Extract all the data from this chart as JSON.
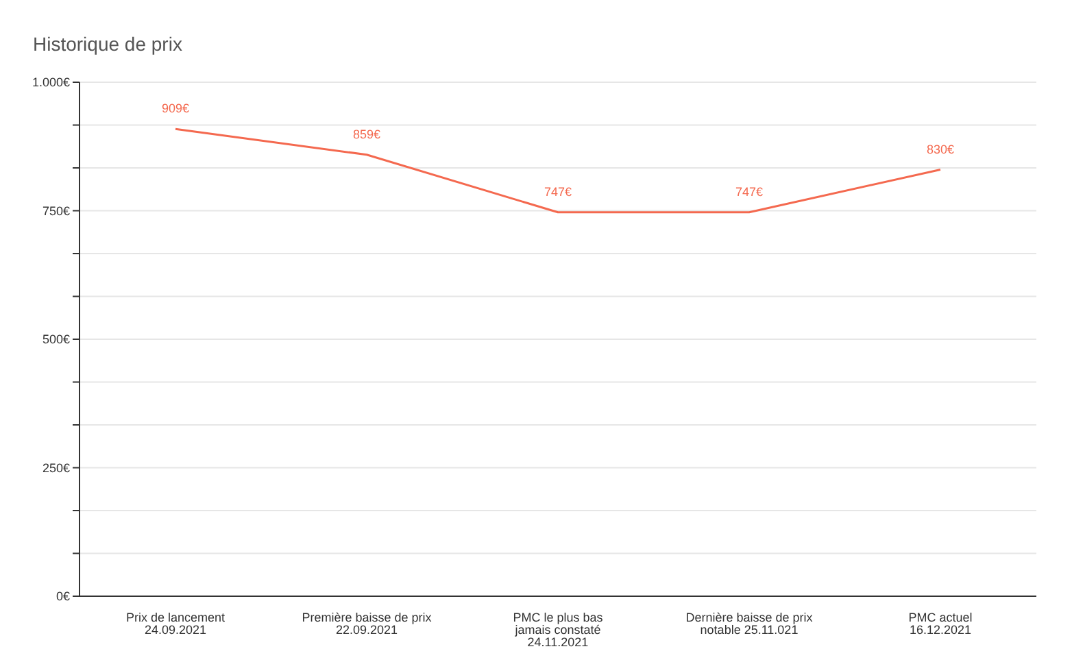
{
  "chart_data": {
    "type": "line",
    "title": "Historique de prix",
    "categories": [
      "Prix de lancement 24.09.2021",
      "Première baisse de prix 22.09.2021",
      "PMC le plus bas jamais constaté 24.11.2021",
      "Dernière baisse de prix notable 25.11.021",
      "PMC actuel 16.12.2021"
    ],
    "series": [
      {
        "color": "#f4694f",
        "values": [
          909,
          859,
          747,
          747,
          830
        ],
        "value_labels": [
          "909€",
          "859€",
          "747€",
          "747€",
          "830€"
        ]
      }
    ],
    "ylim": [
      0,
      1000
    ],
    "yticks": [
      {
        "value": 0,
        "label": "0€"
      },
      {
        "value": 83.33,
        "label": null
      },
      {
        "value": 166.67,
        "label": null
      },
      {
        "value": 250,
        "label": "250€"
      },
      {
        "value": 333.33,
        "label": null
      },
      {
        "value": 416.67,
        "label": null
      },
      {
        "value": 500,
        "label": "500€"
      },
      {
        "value": 583.33,
        "label": null
      },
      {
        "value": 666.67,
        "label": null
      },
      {
        "value": 750,
        "label": "750€"
      },
      {
        "value": 833.33,
        "label": null
      },
      {
        "value": 916.67,
        "label": null
      },
      {
        "value": 1000,
        "label": "1.000€"
      }
    ],
    "grid": "y",
    "marker": "none",
    "line_style": "solid"
  }
}
